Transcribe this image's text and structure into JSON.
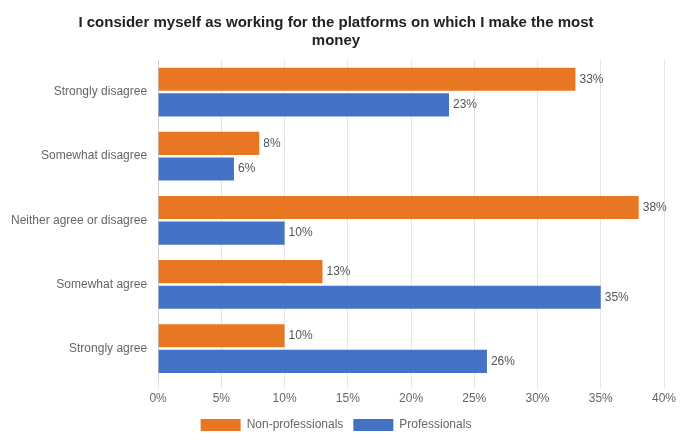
{
  "chart_data": {
    "type": "bar",
    "orientation": "horizontal",
    "title": "I consider myself as working for the platforms on which I make the most\nmoney",
    "categories": [
      "Strongly disagree",
      "Somewhat disagree",
      "Neither agree or disagree",
      "Somewhat agree",
      "Strongly agree"
    ],
    "series": [
      {
        "name": "Non-professionals",
        "color": "#E87722",
        "values": [
          33,
          8,
          38,
          13,
          10
        ],
        "value_labels": [
          "33%",
          "8%",
          "38%",
          "13%",
          "10%"
        ]
      },
      {
        "name": "Professionals",
        "color": "#4472C4",
        "values": [
          23,
          6,
          10,
          35,
          26
        ],
        "value_labels": [
          "23%",
          "6%",
          "10%",
          "35%",
          "26%"
        ]
      }
    ],
    "xlim": [
      0,
      40
    ],
    "xticks": [
      {
        "value": 0,
        "label": "0%"
      },
      {
        "value": 5,
        "label": "5%"
      },
      {
        "value": 10,
        "label": "10%"
      },
      {
        "value": 15,
        "label": "15%"
      },
      {
        "value": 20,
        "label": "20%"
      },
      {
        "value": 25,
        "label": "25%"
      },
      {
        "value": 30,
        "label": "30%"
      },
      {
        "value": 35,
        "label": "35%"
      },
      {
        "value": 40,
        "label": "40%"
      }
    ],
    "grid": true,
    "legend": "bottom",
    "data_labels": true
  }
}
